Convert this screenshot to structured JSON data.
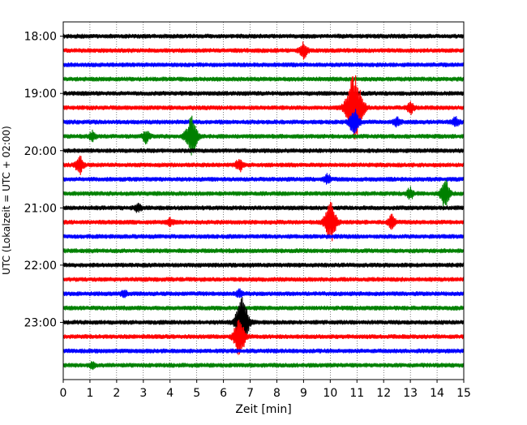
{
  "chart_data": {
    "type": "line",
    "title": "",
    "xlabel": "Zeit  [min]",
    "ylabel": "UTC (Lokalzeit = UTC + 02:00)",
    "xlim": [
      0,
      15
    ],
    "x_ticks": [
      "0",
      "1",
      "2",
      "3",
      "4",
      "5",
      "6",
      "7",
      "8",
      "9",
      "10",
      "11",
      "12",
      "13",
      "14",
      "15"
    ],
    "y_ticks": [
      "18:00",
      "19:00",
      "20:00",
      "21:00",
      "22:00",
      "23:00"
    ],
    "ylim_minutes_after_start": [
      -15,
      360
    ],
    "grid": "vertical dotted at each minute",
    "trace_interval_minutes": 15,
    "colors_cycle": [
      "#000000",
      "#ff0000",
      "#0000ff",
      "#008000"
    ],
    "traces": [
      {
        "start": "18:00",
        "color": "#000000",
        "events": []
      },
      {
        "start": "18:15",
        "color": "#ff0000",
        "events": [
          {
            "t": 9.0,
            "amp": 1.0
          }
        ]
      },
      {
        "start": "18:30",
        "color": "#0000ff",
        "events": []
      },
      {
        "start": "18:45",
        "color": "#008000",
        "events": []
      },
      {
        "start": "19:00",
        "color": "#000000",
        "events": []
      },
      {
        "start": "19:15",
        "color": "#ff0000",
        "events": [
          {
            "t": 10.9,
            "amp": 4.5
          },
          {
            "t": 13.0,
            "amp": 0.8
          }
        ]
      },
      {
        "start": "19:30",
        "color": "#0000ff",
        "events": [
          {
            "t": 10.9,
            "amp": 1.8
          },
          {
            "t": 12.5,
            "amp": 0.6
          },
          {
            "t": 14.7,
            "amp": 0.6
          }
        ]
      },
      {
        "start": "19:45",
        "color": "#008000",
        "events": [
          {
            "t": 1.1,
            "amp": 0.6
          },
          {
            "t": 3.1,
            "amp": 0.8
          },
          {
            "t": 4.8,
            "amp": 2.6
          }
        ]
      },
      {
        "start": "20:00",
        "color": "#000000",
        "events": []
      },
      {
        "start": "20:15",
        "color": "#ff0000",
        "events": [
          {
            "t": 0.6,
            "amp": 1.2
          },
          {
            "t": 6.6,
            "amp": 0.8
          }
        ]
      },
      {
        "start": "20:30",
        "color": "#0000ff",
        "events": [
          {
            "t": 9.9,
            "amp": 0.6
          }
        ]
      },
      {
        "start": "20:45",
        "color": "#008000",
        "events": [
          {
            "t": 13.0,
            "amp": 0.7
          },
          {
            "t": 14.3,
            "amp": 1.8
          }
        ]
      },
      {
        "start": "21:00",
        "color": "#000000",
        "events": [
          {
            "t": 2.8,
            "amp": 0.5
          }
        ]
      },
      {
        "start": "21:15",
        "color": "#ff0000",
        "events": [
          {
            "t": 4.0,
            "amp": 0.4
          },
          {
            "t": 10.0,
            "amp": 2.6
          },
          {
            "t": 12.3,
            "amp": 0.9
          }
        ]
      },
      {
        "start": "21:30",
        "color": "#0000ff",
        "events": []
      },
      {
        "start": "21:45",
        "color": "#008000",
        "events": []
      },
      {
        "start": "22:00",
        "color": "#000000",
        "events": []
      },
      {
        "start": "22:15",
        "color": "#ff0000",
        "events": []
      },
      {
        "start": "22:30",
        "color": "#0000ff",
        "events": [
          {
            "t": 2.3,
            "amp": 0.5
          },
          {
            "t": 6.6,
            "amp": 0.5
          }
        ]
      },
      {
        "start": "22:45",
        "color": "#008000",
        "events": []
      },
      {
        "start": "23:00",
        "color": "#000000",
        "events": [
          {
            "t": 6.7,
            "amp": 3.2
          }
        ]
      },
      {
        "start": "23:15",
        "color": "#ff0000",
        "events": [
          {
            "t": 6.6,
            "amp": 2.5
          }
        ]
      },
      {
        "start": "23:30",
        "color": "#0000ff",
        "events": []
      },
      {
        "start": "23:45",
        "color": "#008000",
        "events": [
          {
            "t": 1.1,
            "amp": 0.4
          }
        ]
      }
    ]
  }
}
